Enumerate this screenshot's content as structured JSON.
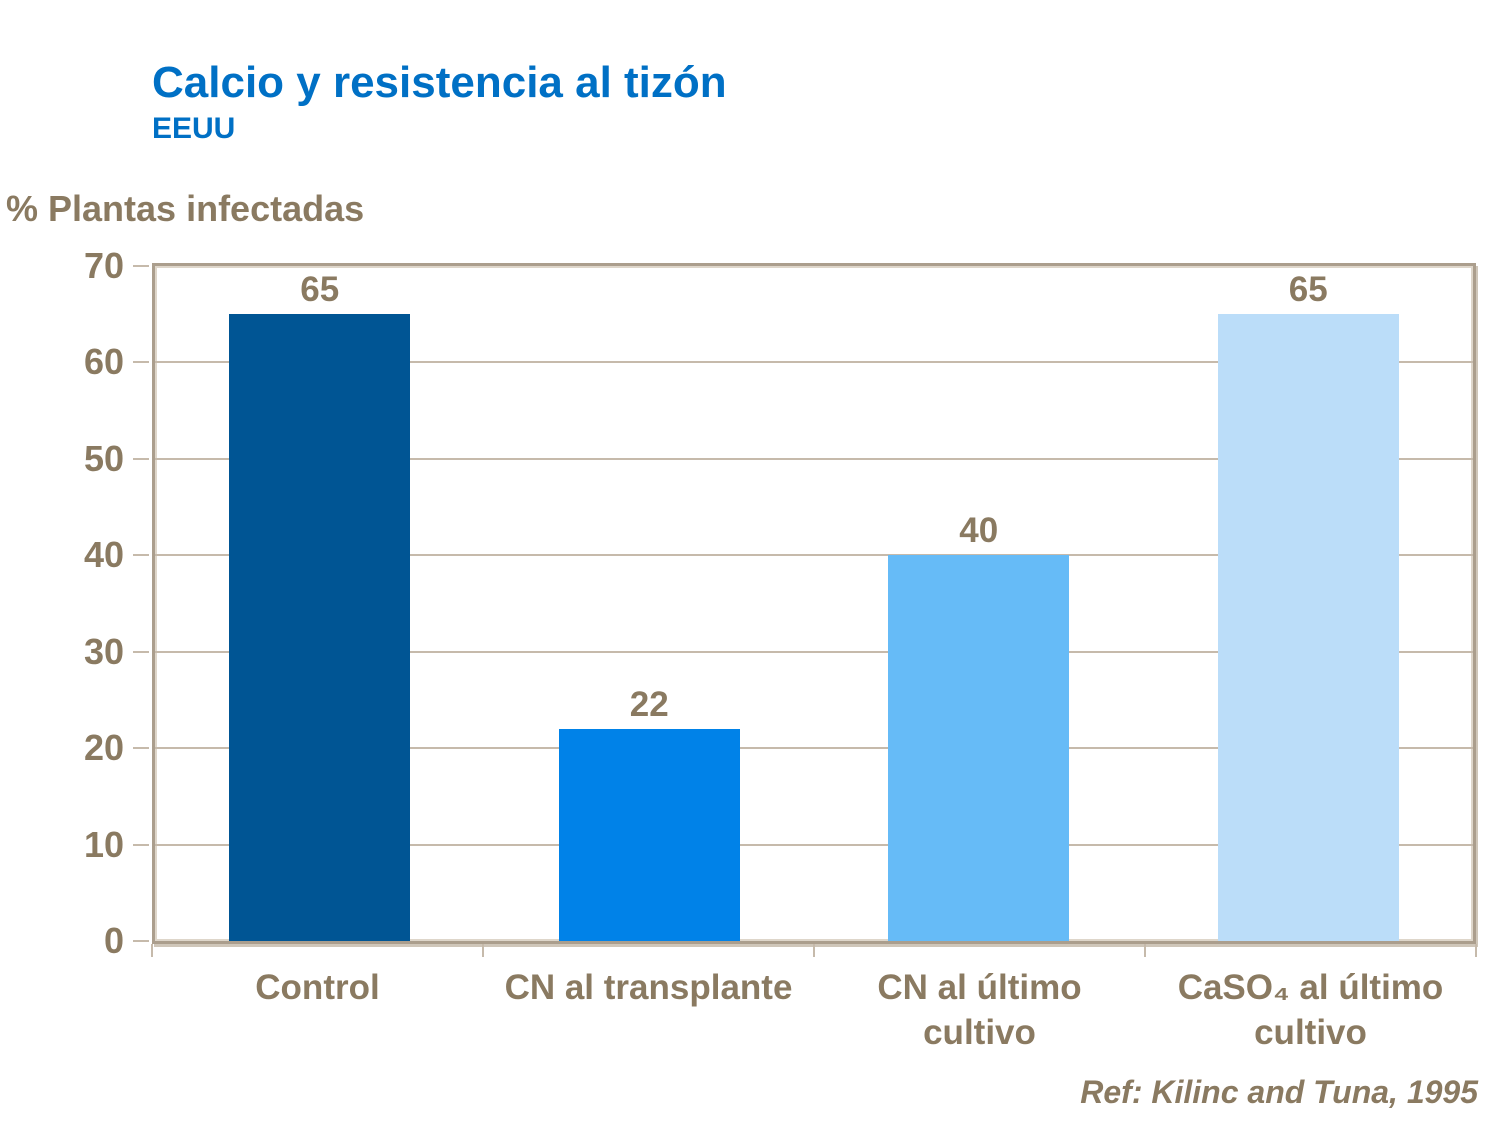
{
  "header": {
    "title": "Calcio y resistencia al tizón",
    "subtitle": "EEUU"
  },
  "chart_data": {
    "type": "bar",
    "title": "Calcio y resistencia al tizón",
    "subtitle": "EEUU",
    "ylabel": "% Plantas infectadas",
    "xlabel": "",
    "categories": [
      "Control",
      "CN al transplante",
      "CN al último cultivo",
      "CaSO₄ al último cultivo"
    ],
    "values": [
      65,
      22,
      40,
      65
    ],
    "value_labels": [
      "65",
      "22",
      "40",
      "65"
    ],
    "bar_colors": [
      "#005594",
      "#0082E8",
      "#66BBF7",
      "#BBDDF9"
    ],
    "ylim": [
      0,
      70
    ],
    "yticks": [
      0,
      10,
      20,
      30,
      40,
      50,
      60,
      70
    ],
    "grid": true,
    "legend_position": "none"
  },
  "footer": {
    "reference": "Ref: Kilinc and Tuna, 1995"
  },
  "colors": {
    "title_blue": "#0070C5",
    "text_brown": "#8A7A61",
    "frame_tan": "#AB9E8D",
    "grid_tan": "#C6BAAB"
  }
}
